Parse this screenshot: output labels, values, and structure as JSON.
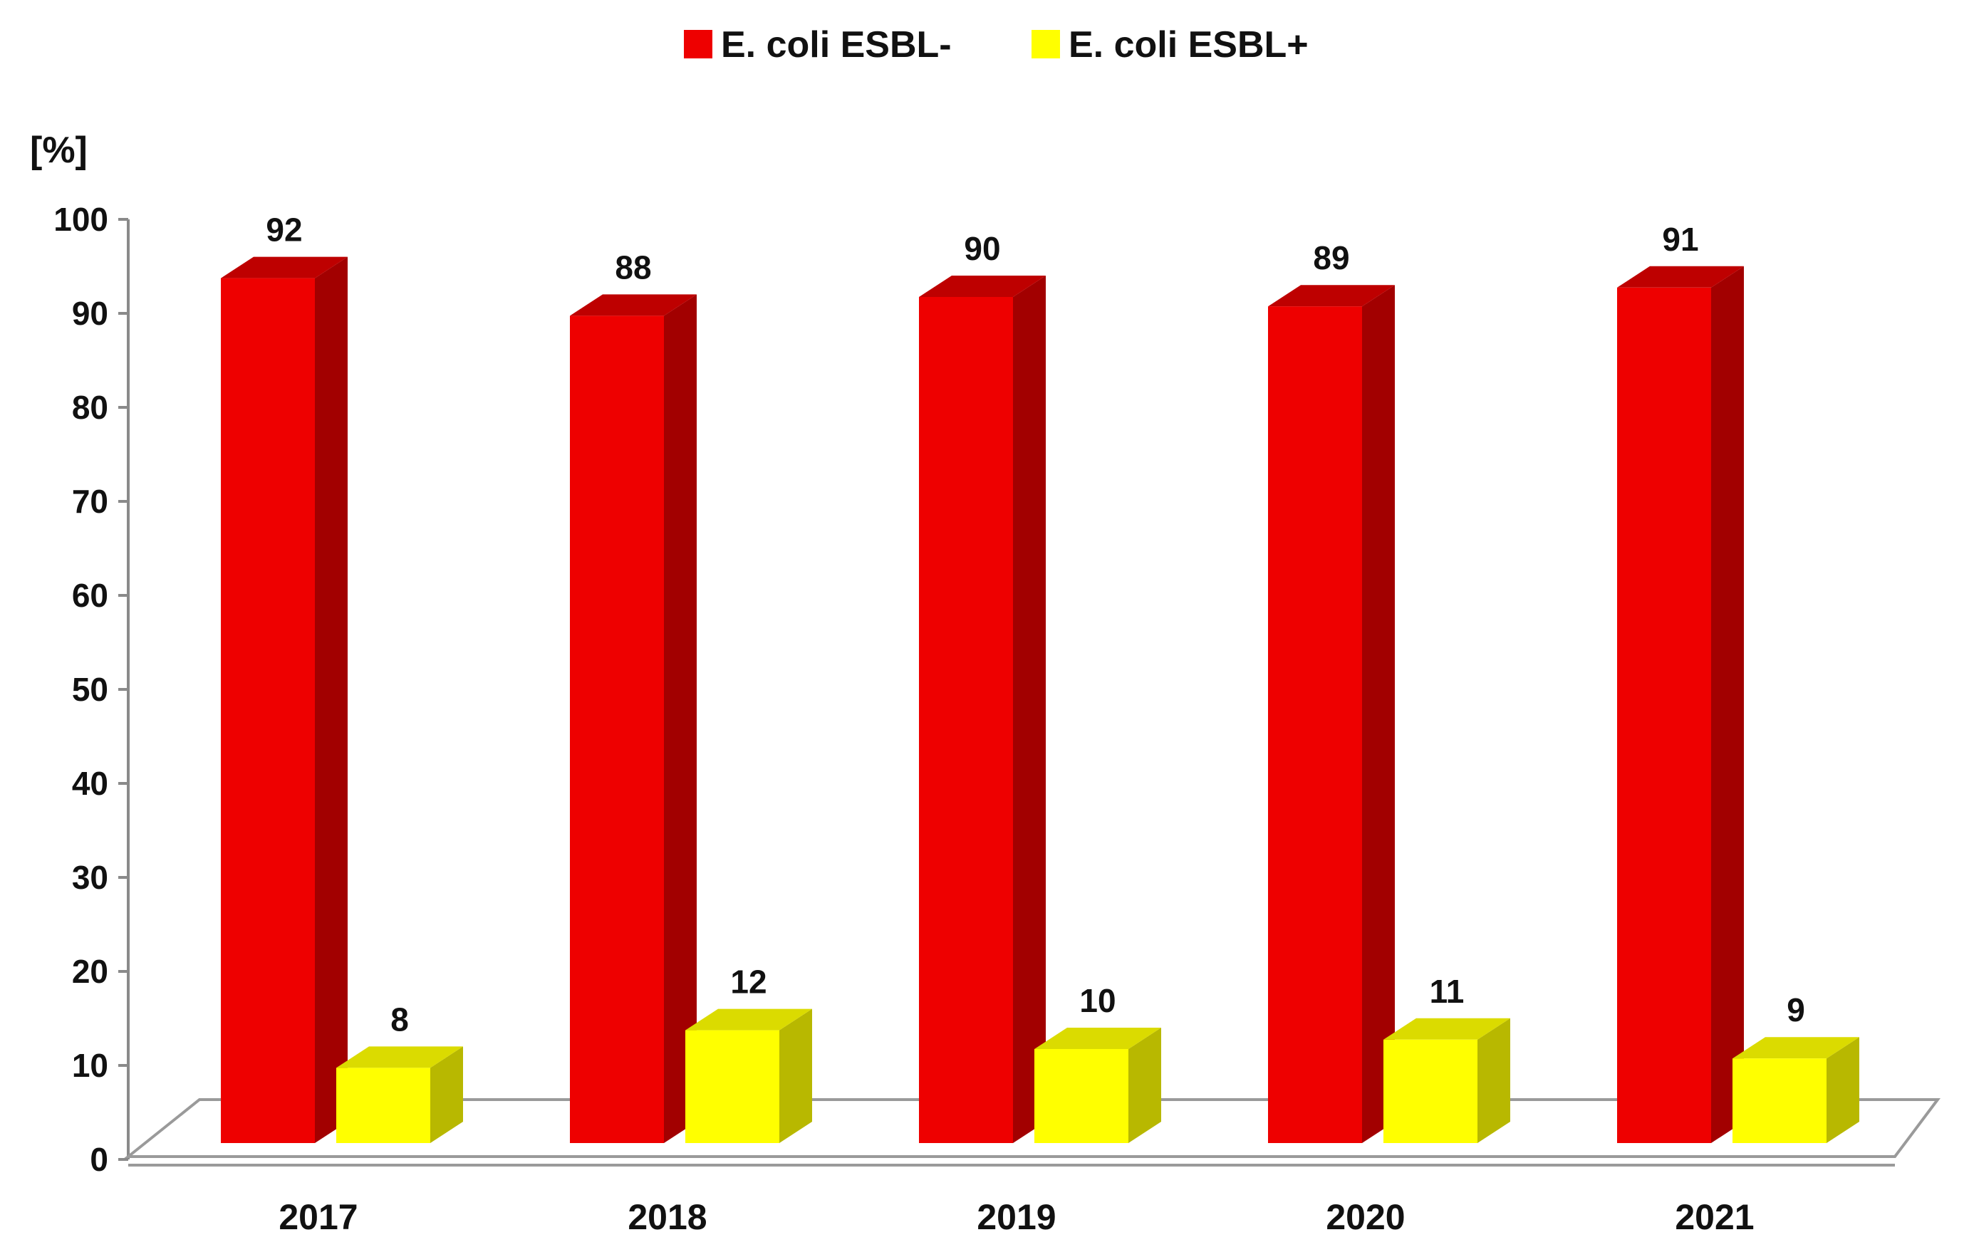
{
  "chart_data": {
    "type": "bar",
    "style": "3d-clustered-column",
    "title": "",
    "xlabel": "",
    "ylabel": "[%]",
    "ylim": [
      0,
      100
    ],
    "yticks": [
      0,
      10,
      20,
      30,
      40,
      50,
      60,
      70,
      80,
      90,
      100
    ],
    "grid": false,
    "legend_position": "top-center",
    "categories": [
      "2017",
      "2018",
      "2019",
      "2020",
      "2021"
    ],
    "series": [
      {
        "name": "E. coli ESBL-",
        "values": [
          92,
          88,
          90,
          89,
          91
        ],
        "color": "#ee0000"
      },
      {
        "name": "E. coli ESBL+",
        "values": [
          8,
          12,
          10,
          11,
          9
        ],
        "color": "#ffff00"
      }
    ]
  }
}
